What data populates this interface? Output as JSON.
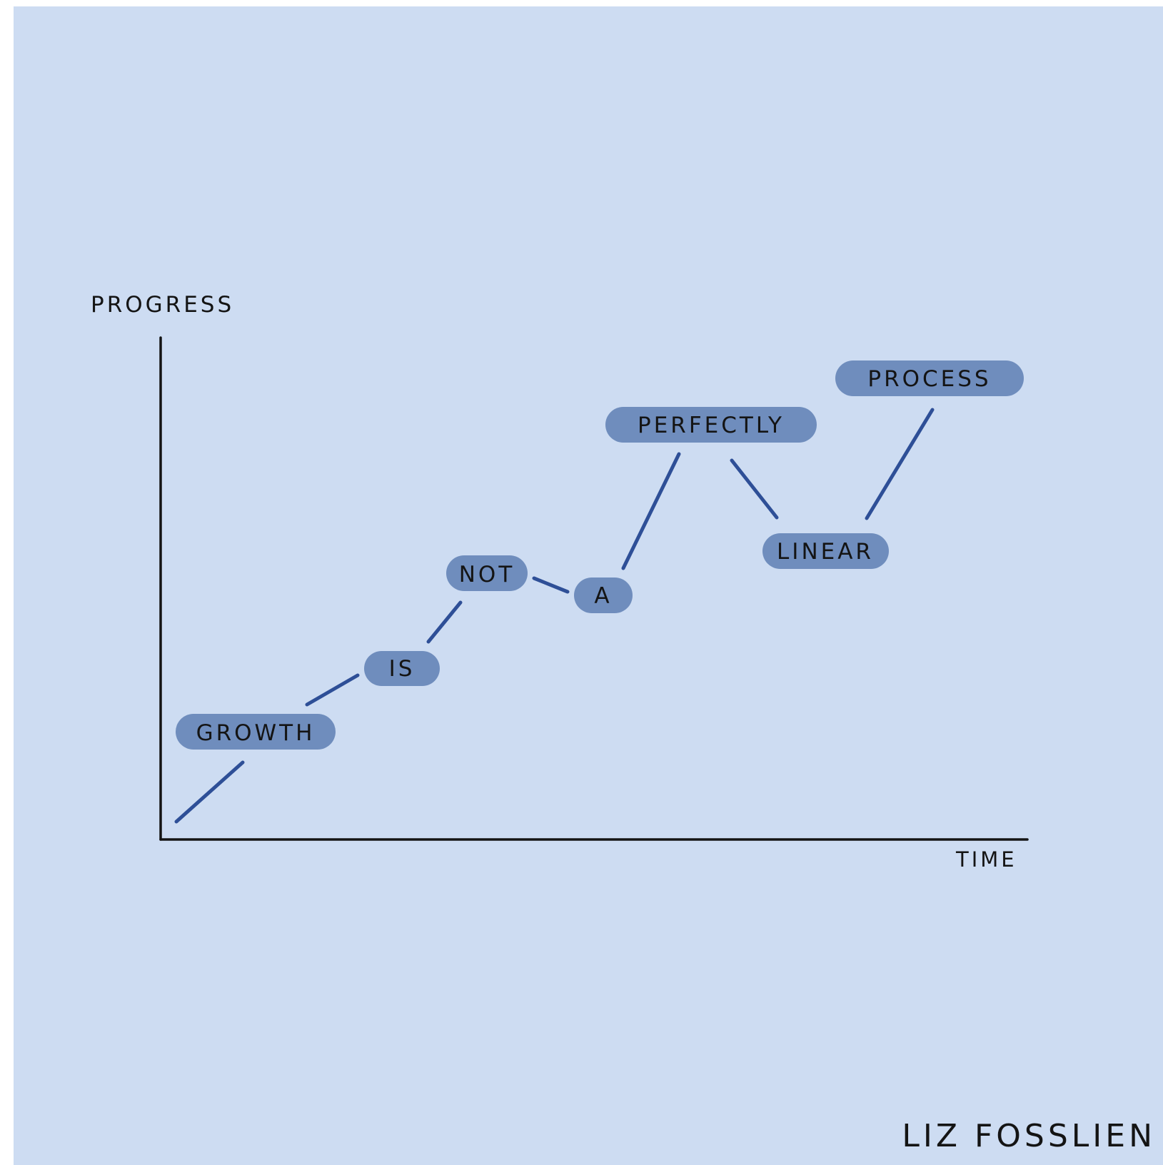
{
  "diagram": {
    "y_axis_label": "PROGRESS",
    "x_axis_label": "TIME",
    "words": [
      "GROWTH",
      "IS",
      "NOT",
      "A",
      "PERFECTLY",
      "LINEAR",
      "PROCESS"
    ],
    "signature": "LIZ FOSSLIEN"
  },
  "colors": {
    "background": "#cddcf2",
    "pill": "#6f8dbd",
    "connector": "#2e4f97",
    "axis": "#141414",
    "text": "#141414"
  }
}
